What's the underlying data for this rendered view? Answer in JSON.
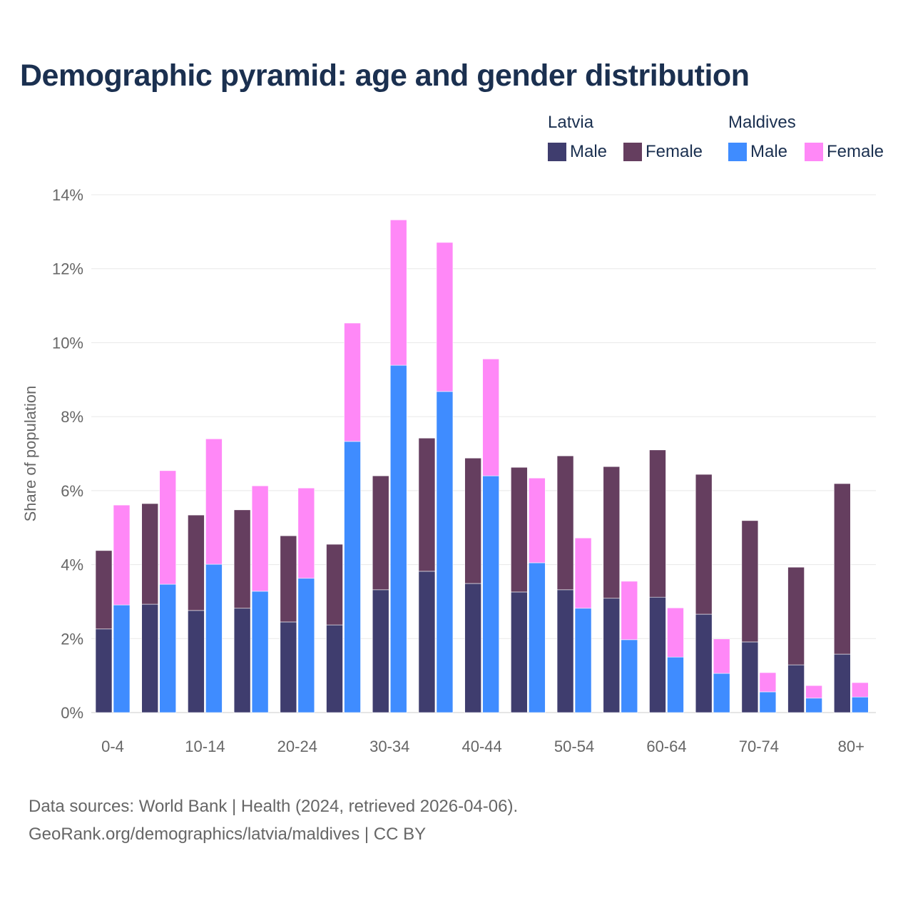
{
  "chart_data": {
    "type": "bar",
    "title": "Demographic pyramid: age and gender distribution",
    "ylabel": "Share of population",
    "xlabel": "",
    "ylim": [
      0,
      14
    ],
    "yticks": [
      "0%",
      "2%",
      "4%",
      "6%",
      "8%",
      "10%",
      "12%",
      "14%"
    ],
    "ytick_values": [
      0,
      2,
      4,
      6,
      8,
      10,
      12,
      14
    ],
    "grid": true,
    "stacked": true,
    "legend_position": "top-right",
    "categories": [
      "0-4",
      "5-9",
      "10-14",
      "15-19",
      "20-24",
      "25-29",
      "30-34",
      "35-39",
      "40-44",
      "45-49",
      "50-54",
      "55-59",
      "60-64",
      "65-69",
      "70-74",
      "75-79",
      "80+"
    ],
    "xtick_labels_shown": [
      "0-4",
      "10-14",
      "20-24",
      "30-34",
      "40-44",
      "50-54",
      "60-64",
      "70-74",
      "80+"
    ],
    "groups": [
      {
        "name": "Latvia",
        "series": [
          {
            "name": "Male",
            "color": "#3f3d6e",
            "values": [
              2.26,
              2.93,
              2.76,
              2.82,
              2.45,
              2.37,
              3.32,
              3.82,
              3.49,
              3.26,
              3.32,
              3.09,
              3.12,
              2.66,
              1.91,
              1.29,
              1.58
            ]
          },
          {
            "name": "Female",
            "color": "#653e5f",
            "values": [
              2.12,
              2.72,
              2.58,
              2.66,
              2.33,
              2.18,
              3.08,
              3.6,
              3.39,
              3.37,
              3.62,
              3.56,
              3.98,
              3.78,
              3.28,
              2.64,
              4.61
            ]
          }
        ]
      },
      {
        "name": "Maldives",
        "series": [
          {
            "name": "Male",
            "color": "#3f8cff",
            "values": [
              2.91,
              3.47,
              4.01,
              3.28,
              3.63,
              7.33,
              9.39,
              8.68,
              6.4,
              4.05,
              2.82,
              1.97,
              1.5,
              1.06,
              0.56,
              0.39,
              0.42
            ]
          },
          {
            "name": "Female",
            "color": "#ff88f7",
            "values": [
              2.7,
              3.07,
              3.39,
              2.85,
              2.44,
              3.2,
              3.93,
              4.03,
              3.16,
              2.29,
              1.9,
              1.58,
              1.33,
              0.93,
              0.52,
              0.34,
              0.39
            ]
          }
        ]
      }
    ]
  },
  "sources": {
    "line1": "Data sources: World Bank | Health (2024, retrieved 2026-04-06).",
    "line2": "GeoRank.org/demographics/latvia/maldives | CC BY"
  }
}
